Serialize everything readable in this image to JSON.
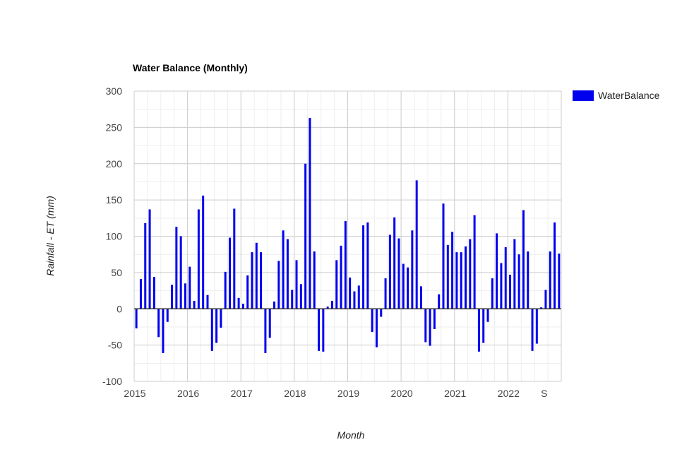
{
  "chart_data": {
    "type": "bar",
    "title": "Water Balance (Monthly)",
    "xlabel": "Month",
    "ylabel": "Rainfall - ET (mm)",
    "ylim": [
      -100,
      300
    ],
    "yticks": [
      -100,
      -50,
      0,
      50,
      100,
      150,
      200,
      250,
      300
    ],
    "grid": true,
    "legend_position": "top-right",
    "bar_color": "#0000ee",
    "x_tick_labels": [
      "2015",
      "2016",
      "2017",
      "2018",
      "2019",
      "2020",
      "2021",
      "2022",
      "S"
    ],
    "x_tick_month_index": [
      0,
      12,
      24,
      36,
      48,
      60,
      72,
      84,
      92
    ],
    "series": [
      {
        "name": "WaterBalance",
        "start": "2015-01",
        "values": [
          -27,
          41,
          118,
          137,
          44,
          -39,
          -61,
          -18,
          33,
          113,
          100,
          35,
          58,
          11,
          137,
          156,
          19,
          -58,
          -47,
          -26,
          51,
          98,
          138,
          15,
          7,
          46,
          78,
          91,
          78,
          -61,
          -40,
          10,
          66,
          108,
          96,
          26,
          67,
          34,
          200,
          263,
          79,
          -58,
          -59,
          3,
          11,
          67,
          87,
          121,
          43,
          24,
          32,
          115,
          119,
          -32,
          -53,
          -11,
          42,
          102,
          126,
          97,
          62,
          57,
          108,
          177,
          31,
          -46,
          -51,
          -28,
          20,
          145,
          88,
          106,
          78,
          78,
          86,
          96,
          129,
          -59,
          -47,
          -18,
          42,
          104,
          63,
          85,
          47,
          96,
          75,
          136,
          79,
          -58,
          -48,
          2,
          26,
          79,
          119,
          76
        ]
      }
    ]
  }
}
